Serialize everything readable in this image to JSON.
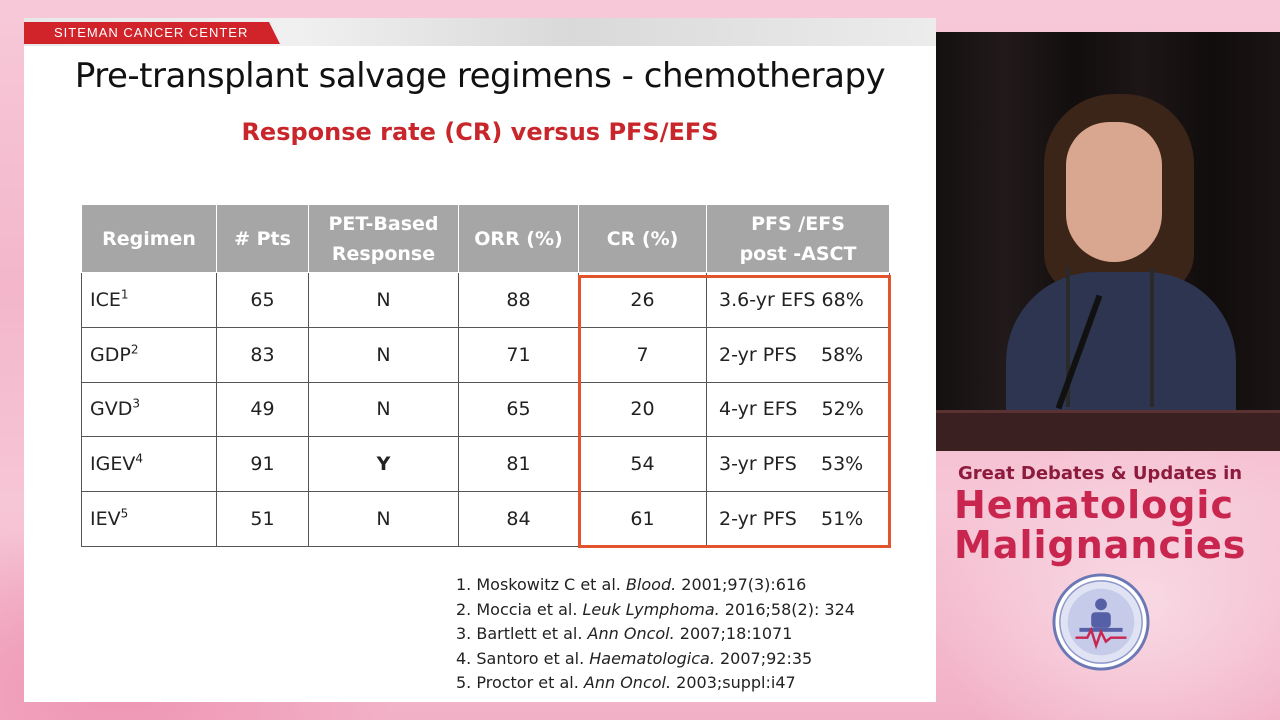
{
  "slide": {
    "brand": "SITEMAN CANCER CENTER",
    "title": "Pre-transplant salvage regimens - chemotherapy",
    "subtitle": "Response rate (CR) versus PFS/EFS"
  },
  "table": {
    "headers": [
      "Regimen",
      "# Pts",
      "PET-Based\nResponse",
      "ORR (%)",
      "CR (%)",
      "PFS /EFS\npost -ASCT"
    ],
    "header_lines": [
      [
        "Regimen"
      ],
      [
        "# Pts"
      ],
      [
        "PET-Based",
        "Response"
      ],
      [
        "ORR (%)"
      ],
      [
        "CR (%)"
      ],
      [
        "PFS /EFS",
        "post -ASCT"
      ]
    ],
    "rows": [
      {
        "regimen": "ICE",
        "ref": "1",
        "pts": "65",
        "pet": "N",
        "orr": "88",
        "cr": "26",
        "pfs": "3.6-yr EFS 68%"
      },
      {
        "regimen": "GDP",
        "ref": "2",
        "pts": "83",
        "pet": "N",
        "orr": "71",
        "cr": "7",
        "pfs": "2-yr PFS    58%"
      },
      {
        "regimen": "GVD",
        "ref": "3",
        "pts": "49",
        "pet": "N",
        "orr": "65",
        "cr": "20",
        "pfs": "4-yr EFS    52%"
      },
      {
        "regimen": "IGEV",
        "ref": "4",
        "pts": "91",
        "pet": "Y",
        "orr": "81",
        "cr": "54",
        "pfs": "3-yr PFS    53%"
      },
      {
        "regimen": "IEV",
        "ref": "5",
        "pts": "51",
        "pet": "N",
        "orr": "84",
        "cr": "61",
        "pfs": "2-yr PFS    51%"
      }
    ]
  },
  "references": [
    {
      "pre": "1. Moskowitz C et al. ",
      "journal": "Blood.",
      "post": " 2001;97(3):616"
    },
    {
      "pre": "2. Moccia et al. ",
      "journal": "Leuk Lymphoma.",
      "post": " 2016;58(2): 324"
    },
    {
      "pre": "3. Bartlett et al. ",
      "journal": "Ann Oncol.",
      "post": " 2007;18:1071"
    },
    {
      "pre": "4. Santoro et al. ",
      "journal": "Haematologica.",
      "post": " 2007;92:35"
    },
    {
      "pre": "5. Proctor et al. ",
      "journal": "Ann Oncol.",
      "post": " 2003;suppl:i47"
    }
  ],
  "event": {
    "line1": "Great Debates & Updates in",
    "line2": "Hematologic",
    "line3": "Malignancies"
  },
  "colors": {
    "accent_red": "#c8262b",
    "highlight_orange": "#e2552c",
    "header_gray": "#a6a6a6",
    "event_magenta": "#c8264f",
    "event_dark": "#8d1b3d"
  },
  "icons": {
    "logo": "hematology-emblem-icon"
  }
}
